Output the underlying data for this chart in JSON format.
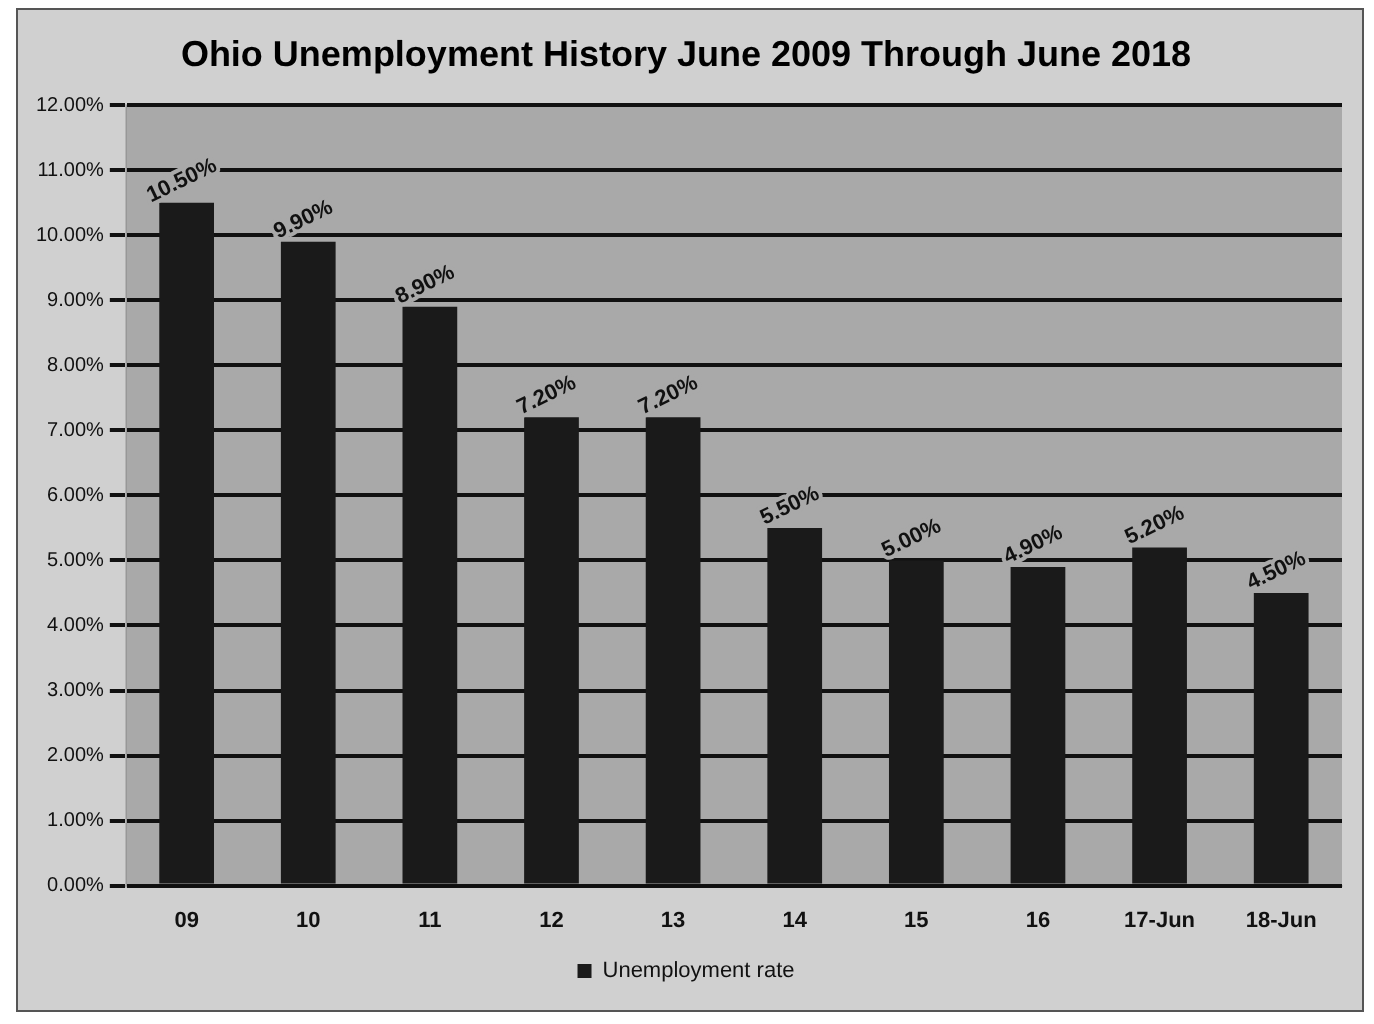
{
  "chart_data": {
    "type": "bar",
    "title": "Ohio Unemployment History June 2009 Through June 2018",
    "categories": [
      "09",
      "10",
      "11",
      "12",
      "13",
      "14",
      "15",
      "16",
      "17-Jun",
      "18-Jun"
    ],
    "series": [
      {
        "name": "Unemployment rate",
        "color": "#1a1a1a",
        "values": [
          10.5,
          9.9,
          8.9,
          7.2,
          7.2,
          5.5,
          5.0,
          4.9,
          5.2,
          4.5
        ],
        "value_labels": [
          "10.50%",
          "9.90%",
          "8.90%",
          "7.20%",
          "7.20%",
          "5.50%",
          "5.00%",
          "4.90%",
          "5.20%",
          "4.50%"
        ]
      }
    ],
    "ylim": [
      0,
      12
    ],
    "yticks": [
      {
        "value": 0,
        "label": "0.00%"
      },
      {
        "value": 1,
        "label": "1.00%"
      },
      {
        "value": 2,
        "label": "2.00%"
      },
      {
        "value": 3,
        "label": "3.00%"
      },
      {
        "value": 4,
        "label": "4.00%"
      },
      {
        "value": 5,
        "label": "5.00%"
      },
      {
        "value": 6,
        "label": "6.00%"
      },
      {
        "value": 7,
        "label": "7.00%"
      },
      {
        "value": 8,
        "label": "8.00%"
      },
      {
        "value": 9,
        "label": "9.00%"
      },
      {
        "value": 10,
        "label": "10.00%"
      },
      {
        "value": 11,
        "label": "11.00%"
      },
      {
        "value": 12,
        "label": "12.00%"
      }
    ],
    "grid": "y",
    "legend": "bottom"
  }
}
